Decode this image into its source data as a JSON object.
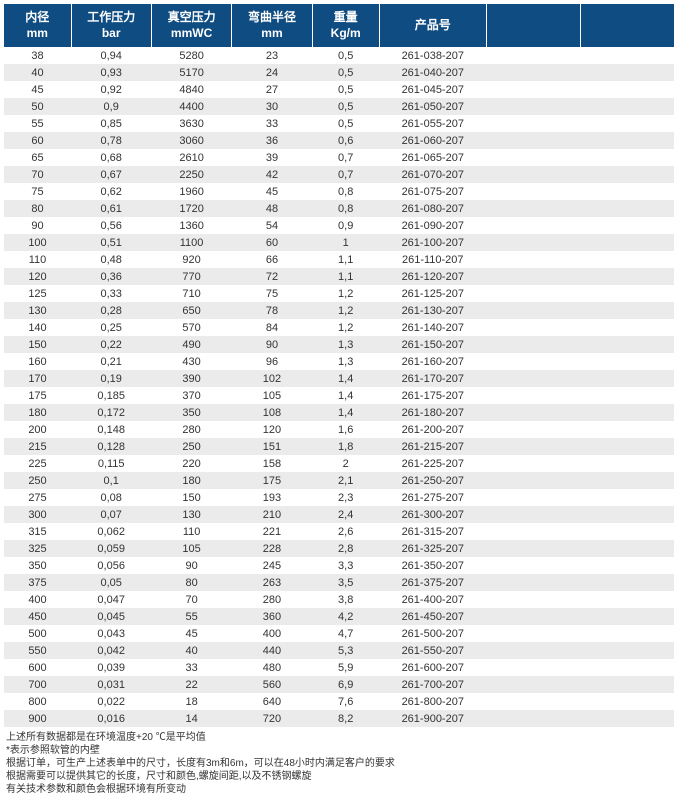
{
  "table": {
    "header_bg": "#0f4c81",
    "header_fg": "#ffffff",
    "row_alt_bg": "#ebebeb",
    "font_size_header": 12,
    "font_size_cell": 11,
    "columns": [
      {
        "line1": "内径",
        "line2": "mm"
      },
      {
        "line1": "工作压力",
        "line2": "bar"
      },
      {
        "line1": "真空压力",
        "line2": "mmWC"
      },
      {
        "line1": "弯曲半径",
        "line2": "mm"
      },
      {
        "line1": "重量",
        "line2": "Kg/m"
      },
      {
        "line1": "产品号",
        "line2": ""
      },
      {
        "line1": "",
        "line2": ""
      },
      {
        "line1": "",
        "line2": ""
      }
    ],
    "rows": [
      [
        "38",
        "0,94",
        "5280",
        "23",
        "0,5",
        "261-038-207",
        "",
        ""
      ],
      [
        "40",
        "0,93",
        "5170",
        "24",
        "0,5",
        "261-040-207",
        "",
        ""
      ],
      [
        "45",
        "0,92",
        "4840",
        "27",
        "0,5",
        "261-045-207",
        "",
        ""
      ],
      [
        "50",
        "0,9",
        "4400",
        "30",
        "0,5",
        "261-050-207",
        "",
        ""
      ],
      [
        "55",
        "0,85",
        "3630",
        "33",
        "0,5",
        "261-055-207",
        "",
        ""
      ],
      [
        "60",
        "0,78",
        "3060",
        "36",
        "0,6",
        "261-060-207",
        "",
        ""
      ],
      [
        "65",
        "0,68",
        "2610",
        "39",
        "0,7",
        "261-065-207",
        "",
        ""
      ],
      [
        "70",
        "0,67",
        "2250",
        "42",
        "0,7",
        "261-070-207",
        "",
        ""
      ],
      [
        "75",
        "0,62",
        "1960",
        "45",
        "0,8",
        "261-075-207",
        "",
        ""
      ],
      [
        "80",
        "0,61",
        "1720",
        "48",
        "0,8",
        "261-080-207",
        "",
        ""
      ],
      [
        "90",
        "0,56",
        "1360",
        "54",
        "0,9",
        "261-090-207",
        "",
        ""
      ],
      [
        "100",
        "0,51",
        "1100",
        "60",
        "1",
        "261-100-207",
        "",
        ""
      ],
      [
        "110",
        "0,48",
        "920",
        "66",
        "1,1",
        "261-110-207",
        "",
        ""
      ],
      [
        "120",
        "0,36",
        "770",
        "72",
        "1,1",
        "261-120-207",
        "",
        ""
      ],
      [
        "125",
        "0,33",
        "710",
        "75",
        "1,2",
        "261-125-207",
        "",
        ""
      ],
      [
        "130",
        "0,28",
        "650",
        "78",
        "1,2",
        "261-130-207",
        "",
        ""
      ],
      [
        "140",
        "0,25",
        "570",
        "84",
        "1,2",
        "261-140-207",
        "",
        ""
      ],
      [
        "150",
        "0,22",
        "490",
        "90",
        "1,3",
        "261-150-207",
        "",
        ""
      ],
      [
        "160",
        "0,21",
        "430",
        "96",
        "1,3",
        "261-160-207",
        "",
        ""
      ],
      [
        "170",
        "0,19",
        "390",
        "102",
        "1,4",
        "261-170-207",
        "",
        ""
      ],
      [
        "175",
        "0,185",
        "370",
        "105",
        "1,4",
        "261-175-207",
        "",
        ""
      ],
      [
        "180",
        "0,172",
        "350",
        "108",
        "1,4",
        "261-180-207",
        "",
        ""
      ],
      [
        "200",
        "0,148",
        "280",
        "120",
        "1,6",
        "261-200-207",
        "",
        ""
      ],
      [
        "215",
        "0,128",
        "250",
        "151",
        "1,8",
        "261-215-207",
        "",
        ""
      ],
      [
        "225",
        "0,115",
        "220",
        "158",
        "2",
        "261-225-207",
        "",
        ""
      ],
      [
        "250",
        "0,1",
        "180",
        "175",
        "2,1",
        "261-250-207",
        "",
        ""
      ],
      [
        "275",
        "0,08",
        "150",
        "193",
        "2,3",
        "261-275-207",
        "",
        ""
      ],
      [
        "300",
        "0,07",
        "130",
        "210",
        "2,4",
        "261-300-207",
        "",
        ""
      ],
      [
        "315",
        "0,062",
        "110",
        "221",
        "2,6",
        "261-315-207",
        "",
        ""
      ],
      [
        "325",
        "0,059",
        "105",
        "228",
        "2,8",
        "261-325-207",
        "",
        ""
      ],
      [
        "350",
        "0,056",
        "90",
        "245",
        "3,3",
        "261-350-207",
        "",
        ""
      ],
      [
        "375",
        "0,05",
        "80",
        "263",
        "3,5",
        "261-375-207",
        "",
        ""
      ],
      [
        "400",
        "0,047",
        "70",
        "280",
        "3,8",
        "261-400-207",
        "",
        ""
      ],
      [
        "450",
        "0,045",
        "55",
        "360",
        "4,2",
        "261-450-207",
        "",
        ""
      ],
      [
        "500",
        "0,043",
        "45",
        "400",
        "4,7",
        "261-500-207",
        "",
        ""
      ],
      [
        "550",
        "0,042",
        "40",
        "440",
        "5,3",
        "261-550-207",
        "",
        ""
      ],
      [
        "600",
        "0,039",
        "33",
        "480",
        "5,9",
        "261-600-207",
        "",
        ""
      ],
      [
        "700",
        "0,031",
        "22",
        "560",
        "6,9",
        "261-700-207",
        "",
        ""
      ],
      [
        "800",
        "0,022",
        "18",
        "640",
        "7,6",
        "261-800-207",
        "",
        ""
      ],
      [
        "900",
        "0,016",
        "14",
        "720",
        "8,2",
        "261-900-207",
        "",
        ""
      ]
    ]
  },
  "footnotes": [
    "上述所有数据都是在环境温度+20 ℃是平均值",
    "*表示参照软管的内壁",
    "根据订单，可生产上述表单中的尺寸，长度有3m和6m，可以在48小时内满足客户的要求",
    "根据需要可以提供其它的长度，尺寸和颜色,螺旋间距,以及不锈钢螺旋",
    "有关技术参数和颜色会根据环境有所变动"
  ]
}
